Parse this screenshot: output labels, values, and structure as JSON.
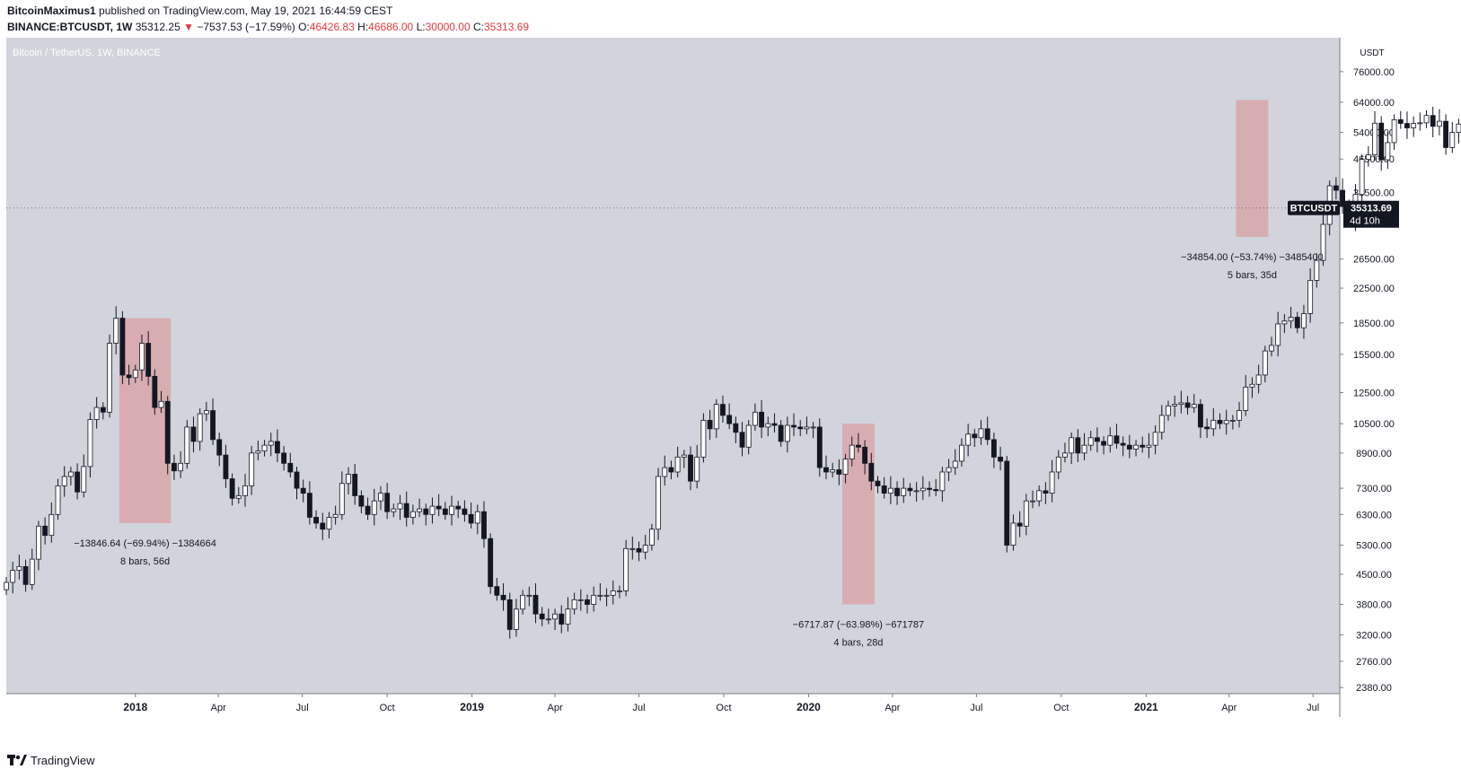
{
  "header": {
    "author": "BitcoinMaximus1",
    "published_text": "published on TradingView.com, May 19, 2021 16:44:59 CEST",
    "symbol": "BINANCE:BTCUSDT, 1W",
    "price_last": "35312.25",
    "change_arrow": "▼",
    "change": "−7537.53 (−17.59%)",
    "o_label": "O:",
    "o_value": "46426.83",
    "h_label": "H:",
    "h_value": "46686.00",
    "l_label": "L:",
    "l_value": "30000.00",
    "c_label": "C:",
    "c_value": "35313.69"
  },
  "footer": {
    "brand": "TradingView"
  },
  "colors": {
    "background": "#d1d4dc",
    "up_candle": "#ffffff",
    "down_candle": "#131722",
    "wick": "#131722",
    "highlight": "#d9a3a8",
    "tag_bg": "#131722"
  },
  "chart_data": {
    "type": "candlestick",
    "title": "Bitcoin / TetherUS, 1W, BINANCE",
    "y_unit_label": "USDT",
    "y_scale": "log",
    "ylim": [
      2300,
      92000
    ],
    "y_ticks": [
      {
        "value": 76000,
        "label": "76000.00"
      },
      {
        "value": 64000,
        "label": "64000.00"
      },
      {
        "value": 54000,
        "label": "54000.00"
      },
      {
        "value": 46500,
        "label": "46500.00"
      },
      {
        "value": 38500,
        "label": "38500.00"
      },
      {
        "value": 26500,
        "label": "26500.00"
      },
      {
        "value": 22500,
        "label": "22500.00"
      },
      {
        "value": 18500,
        "label": "18500.00"
      },
      {
        "value": 15500,
        "label": "15500.00"
      },
      {
        "value": 12500,
        "label": "12500.00"
      },
      {
        "value": 10500,
        "label": "10500.00"
      },
      {
        "value": 8900,
        "label": "8900.00"
      },
      {
        "value": 7300,
        "label": "7300.00"
      },
      {
        "value": 6300,
        "label": "6300.00"
      },
      {
        "value": 5300,
        "label": "5300.00"
      },
      {
        "value": 4500,
        "label": "4500.00"
      },
      {
        "value": 3800,
        "label": "3800.00"
      },
      {
        "value": 3200,
        "label": "3200.00"
      },
      {
        "value": 2760,
        "label": "2760.00"
      },
      {
        "value": 2380,
        "label": "2380.00"
      }
    ],
    "x_ticks": [
      {
        "date": "2018-01-01",
        "label": "2018",
        "bold": true
      },
      {
        "date": "2018-04-01",
        "label": "Apr",
        "bold": false
      },
      {
        "date": "2018-07-01",
        "label": "Jul",
        "bold": false
      },
      {
        "date": "2018-10-01",
        "label": "Oct",
        "bold": false
      },
      {
        "date": "2019-01-01",
        "label": "2019",
        "bold": true
      },
      {
        "date": "2019-04-01",
        "label": "Apr",
        "bold": false
      },
      {
        "date": "2019-07-01",
        "label": "Jul",
        "bold": false
      },
      {
        "date": "2019-10-01",
        "label": "Oct",
        "bold": false
      },
      {
        "date": "2020-01-01",
        "label": "2020",
        "bold": true
      },
      {
        "date": "2020-04-01",
        "label": "Apr",
        "bold": false
      },
      {
        "date": "2020-07-01",
        "label": "Jul",
        "bold": false
      },
      {
        "date": "2020-10-01",
        "label": "Oct",
        "bold": false
      },
      {
        "date": "2021-01-01",
        "label": "2021",
        "bold": true
      },
      {
        "date": "2021-04-01",
        "label": "Apr",
        "bold": false
      },
      {
        "date": "2021-07-01",
        "label": "Jul",
        "bold": false
      }
    ],
    "xlim": [
      "2017-08-14",
      "2021-07-30"
    ],
    "candles_start": "2017-08-14",
    "closes": [
      4300,
      4600,
      4700,
      4250,
      4900,
      5900,
      5600,
      6300,
      7400,
      7800,
      8000,
      7150,
      8250,
      10750,
      11500,
      11200,
      16500,
      19000,
      13800,
      13600,
      14200,
      16500,
      13700,
      11500,
      11900,
      8400,
      8050,
      8400,
      10300,
      9500,
      11100,
      11300,
      9600,
      8800,
      7700,
      6900,
      7000,
      7400,
      8900,
      9000,
      9300,
      9500,
      8900,
      8400,
      8000,
      7300,
      7100,
      6200,
      6000,
      5800,
      6200,
      6300,
      7500,
      7900,
      7000,
      6600,
      6300,
      6800,
      7100,
      6400,
      6500,
      6700,
      6200,
      6400,
      6500,
      6300,
      6600,
      6500,
      6300,
      6600,
      6500,
      6300,
      6000,
      6400,
      5500,
      4200,
      4000,
      3900,
      3300,
      3700,
      4000,
      4000,
      3600,
      3500,
      3500,
      3600,
      3400,
      3700,
      3900,
      3900,
      3800,
      4000,
      4000,
      4000,
      4100,
      4100,
      5200,
      5200,
      5100,
      5300,
      5800,
      7800,
      8200,
      8000,
      8700,
      8800,
      7600,
      8700,
      10700,
      10200,
      11700,
      11000,
      10500,
      10000,
      9200,
      10400,
      11200,
      10300,
      10500,
      10400,
      9500,
      10400,
      10300,
      10200,
      10300,
      10300,
      8200,
      8000,
      8100,
      7900,
      8600,
      9300,
      9200,
      8400,
      7600,
      7400,
      7100,
      7300,
      7000,
      7300,
      7200,
      7200,
      7300,
      7250,
      7200,
      8000,
      8200,
      8500,
      9300,
      9900,
      9700,
      10200,
      9600,
      8700,
      8500,
      5300,
      6000,
      5900,
      6800,
      6800,
      7200,
      7100,
      8000,
      8700,
      8900,
      9700,
      8900,
      9300,
      9700,
      9500,
      9300,
      9800,
      9400,
      9300,
      9100,
      9300,
      9200,
      9300,
      10000,
      11000,
      11600,
      11700,
      11800,
      11500,
      11700,
      10300,
      10200,
      10700,
      10500,
      10700,
      10700,
      11300,
      12900,
      13100,
      13800,
      15800,
      16300,
      18400,
      18700,
      19100,
      18000,
      19500,
      23500,
      26300,
      32200,
      40000,
      39000,
      35600,
      33000,
      38100,
      46400,
      47600,
      56900,
      46300,
      51000,
      58000,
      56800,
      55400,
      56800,
      57000,
      59400,
      55900,
      57500,
      49600,
      54000,
      56600,
      46400,
      35313
    ],
    "ranges": [
      {
        "label": "−13846.64 (−69.94%) −1384664",
        "sublabel": "8 bars, 56d",
        "from": "2017-12-18",
        "to": "2018-02-05",
        "high": 19000,
        "low": 6000
      },
      {
        "label": "−6717.87 (−63.98%) −671787",
        "sublabel": "4 bars, 28d",
        "from": "2020-02-10",
        "to": "2020-03-09",
        "high": 10500,
        "low": 3800
      },
      {
        "label": "−34854.00 (−53.74%) −3485400",
        "sublabel": "5 bars, 35d",
        "from": "2021-04-12",
        "to": "2021-05-10",
        "high": 64800,
        "low": 30000
      }
    ],
    "last_price_tag": {
      "symbol": "BTCUSDT",
      "price": "35313.69",
      "countdown": "4d 10h",
      "value": 35313.69
    }
  }
}
